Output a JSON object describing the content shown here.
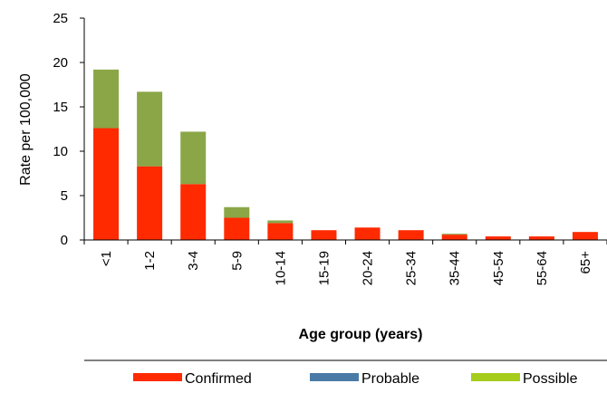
{
  "chart_data": {
    "type": "bar",
    "stacked": true,
    "title": "",
    "xlabel": "Age group (years)",
    "ylabel": "Rate per 100,000",
    "ylim": [
      0,
      25
    ],
    "yticks": [
      "0",
      "5",
      "10",
      "15",
      "20",
      "25"
    ],
    "grid": false,
    "legend_position": "bottom",
    "categories": [
      "<1",
      "1-2",
      "3-4",
      "5-9",
      "10-14",
      "15-19",
      "20-24",
      "25-34",
      "35-44",
      "45-54",
      "55-64",
      "65+"
    ],
    "series": [
      {
        "name": "Confirmed",
        "color": "#ff2a00",
        "values": [
          12.6,
          8.3,
          6.3,
          2.5,
          1.9,
          1.1,
          1.4,
          1.1,
          0.6,
          0.4,
          0.4,
          0.9
        ]
      },
      {
        "name": "Probable",
        "color": "#4a7ba7",
        "values": [
          0,
          0,
          0,
          0,
          0,
          0,
          0,
          0,
          0,
          0,
          0,
          0
        ]
      },
      {
        "name": "Possible",
        "color": "#8aa647",
        "values": [
          6.6,
          8.4,
          5.9,
          1.2,
          0.3,
          0,
          0,
          0,
          0.1,
          0,
          0,
          0
        ]
      }
    ],
    "legend_colors": {
      "Confirmed": "#ff2a00",
      "Probable": "#4a7ba7",
      "Possible": "#a6cc1c"
    }
  }
}
